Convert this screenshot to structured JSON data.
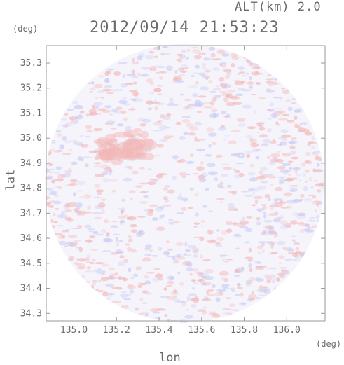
{
  "chart_data": {
    "type": "heatmap",
    "title": "2012/09/14 21:53:23",
    "altitude_label": "ALT(km) 2.0",
    "xlabel": "lon",
    "ylabel": "lat",
    "x_unit": "(deg)",
    "y_unit": "(deg)",
    "xlim": [
      134.87,
      136.18
    ],
    "ylim": [
      34.27,
      35.37
    ],
    "x_ticks": [
      135.0,
      135.2,
      135.4,
      135.6,
      135.8,
      136.0
    ],
    "y_ticks": [
      34.3,
      34.4,
      34.5,
      34.6,
      34.7,
      34.8,
      34.9,
      35.0,
      35.1,
      35.2,
      35.3
    ],
    "x_tick_labels": [
      "135.0",
      "135.2",
      "135.4",
      "135.6",
      "135.8",
      "136.0"
    ],
    "y_tick_labels": [
      "34.3",
      "34.4",
      "34.5",
      "34.6",
      "34.7",
      "34.8",
      "34.9",
      "35.0",
      "35.1",
      "35.2",
      "35.3"
    ],
    "radar_center": {
      "lon": 135.52,
      "lat": 34.82
    },
    "radar_radius_deg_lon": 0.655,
    "field_note": "Doppler-style field: light red (positive) and light blue (negative) speckle over near-white, centered disk",
    "colors": {
      "positive": "#f2b8b8",
      "negative": "#c8cdf5",
      "background": "#f6f4fb",
      "frame": "#9a9a9a"
    },
    "features": [
      {
        "label": "red patch",
        "lon": 135.25,
        "lat": 34.97,
        "sign": "positive"
      }
    ]
  }
}
